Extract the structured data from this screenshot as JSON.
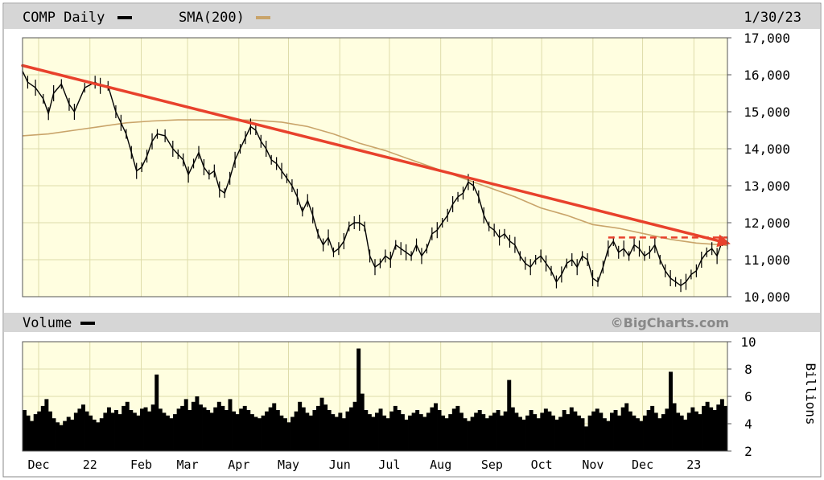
{
  "header": {
    "symbol_label": "COMP Daily",
    "sma_label": "SMA(200)",
    "date": "1/30/23"
  },
  "volume_header": {
    "label": "Volume",
    "credit": "©BigCharts.com"
  },
  "colors": {
    "background": "#fffee0",
    "grid": "#dedcaa",
    "header_bar": "#d6d6d6",
    "price": "#000000",
    "sma": "#c9a46a",
    "trendline": "#e8412c"
  },
  "chart_data": [
    {
      "type": "line",
      "title": "COMP Daily",
      "ylim": [
        10000,
        17000
      ],
      "y_ticks": [
        "17,000",
        "16,000",
        "15,000",
        "14,000",
        "13,000",
        "12,000",
        "11,000",
        "10,000"
      ],
      "y_tick_values": [
        17000,
        16000,
        15000,
        14000,
        13000,
        12000,
        11000,
        10000
      ],
      "x_tick_labels": [
        "Dec",
        "22",
        "Feb",
        "Mar",
        "Apr",
        "May",
        "Jun",
        "Jul",
        "Aug",
        "Sep",
        "Oct",
        "Nov",
        "Dec",
        "23"
      ],
      "x_tick_days": [
        0,
        31,
        62,
        90,
        121,
        151,
        182,
        212,
        243,
        274,
        304,
        335,
        365,
        396
      ],
      "xlim_days": [
        0,
        426
      ],
      "series": [
        {
          "name": "COMP Daily",
          "color": "#000000",
          "points": [
            [
              0,
              16100
            ],
            [
              2,
              15800
            ],
            [
              5,
              15650
            ],
            [
              8,
              15350
            ],
            [
              10,
              14950
            ],
            [
              12,
              15500
            ],
            [
              15,
              15750
            ],
            [
              18,
              15200
            ],
            [
              20,
              15000
            ],
            [
              24,
              15650
            ],
            [
              28,
              15800
            ],
            [
              30,
              15700
            ],
            [
              33,
              15700
            ],
            [
              36,
              15000
            ],
            [
              38,
              14700
            ],
            [
              40,
              14400
            ],
            [
              42,
              13900
            ],
            [
              44,
              13400
            ],
            [
              46,
              13500
            ],
            [
              48,
              13800
            ],
            [
              50,
              14200
            ],
            [
              52,
              14400
            ],
            [
              55,
              14350
            ],
            [
              58,
              14000
            ],
            [
              60,
              13850
            ],
            [
              62,
              13700
            ],
            [
              64,
              13300
            ],
            [
              66,
              13600
            ],
            [
              68,
              13900
            ],
            [
              70,
              13500
            ],
            [
              72,
              13300
            ],
            [
              74,
              13400
            ],
            [
              76,
              12900
            ],
            [
              78,
              12800
            ],
            [
              80,
              13200
            ],
            [
              82,
              13700
            ],
            [
              84,
              14000
            ],
            [
              86,
              14300
            ],
            [
              88,
              14600
            ],
            [
              90,
              14500
            ],
            [
              92,
              14200
            ],
            [
              94,
              14000
            ],
            [
              96,
              13700
            ],
            [
              98,
              13600
            ],
            [
              100,
              13400
            ],
            [
              102,
              13200
            ],
            [
              104,
              13000
            ],
            [
              106,
              12700
            ],
            [
              108,
              12300
            ],
            [
              110,
              12600
            ],
            [
              112,
              12200
            ],
            [
              114,
              11700
            ],
            [
              116,
              11400
            ],
            [
              118,
              11600
            ],
            [
              120,
              11200
            ],
            [
              122,
              11300
            ],
            [
              124,
              11500
            ],
            [
              126,
              11900
            ],
            [
              128,
              12000
            ],
            [
              130,
              12000
            ],
            [
              132,
              11900
            ],
            [
              134,
              11100
            ],
            [
              136,
              10800
            ],
            [
              138,
              10900
            ],
            [
              140,
              11100
            ],
            [
              142,
              11000
            ],
            [
              144,
              11400
            ],
            [
              146,
              11300
            ],
            [
              148,
              11200
            ],
            [
              150,
              11100
            ],
            [
              152,
              11400
            ],
            [
              154,
              11100
            ],
            [
              156,
              11300
            ],
            [
              158,
              11700
            ],
            [
              160,
              11800
            ],
            [
              162,
              12000
            ],
            [
              164,
              12200
            ],
            [
              166,
              12500
            ],
            [
              168,
              12700
            ],
            [
              170,
              12800
            ],
            [
              172,
              13100
            ],
            [
              174,
              13000
            ],
            [
              176,
              12700
            ],
            [
              178,
              12200
            ],
            [
              180,
              11900
            ],
            [
              182,
              11800
            ],
            [
              184,
              11600
            ],
            [
              186,
              11700
            ],
            [
              188,
              11500
            ],
            [
              190,
              11400
            ],
            [
              192,
              11100
            ],
            [
              194,
              10900
            ],
            [
              196,
              10800
            ],
            [
              198,
              11000
            ],
            [
              200,
              11100
            ],
            [
              202,
              10900
            ],
            [
              204,
              10700
            ],
            [
              206,
              10400
            ],
            [
              208,
              10600
            ],
            [
              210,
              10900
            ],
            [
              212,
              11000
            ],
            [
              214,
              10800
            ],
            [
              216,
              11100
            ],
            [
              218,
              11000
            ],
            [
              220,
              10500
            ],
            [
              222,
              10400
            ],
            [
              224,
              10800
            ],
            [
              226,
              11300
            ],
            [
              228,
              11500
            ],
            [
              230,
              11200
            ],
            [
              232,
              11300
            ],
            [
              234,
              11100
            ],
            [
              236,
              11400
            ],
            [
              238,
              11300
            ],
            [
              240,
              11100
            ],
            [
              242,
              11200
            ],
            [
              244,
              11400
            ],
            [
              246,
              11000
            ],
            [
              248,
              10700
            ],
            [
              250,
              10500
            ],
            [
              252,
              10400
            ],
            [
              254,
              10300
            ],
            [
              256,
              10400
            ],
            [
              258,
              10600
            ],
            [
              260,
              10700
            ],
            [
              262,
              11000
            ],
            [
              264,
              11200
            ],
            [
              266,
              11300
            ],
            [
              268,
              11100
            ],
            [
              270,
              11500
            ],
            [
              272,
              11450
            ]
          ]
        },
        {
          "name": "SMA(200)",
          "color": "#c9a46a",
          "points": [
            [
              0,
              14350
            ],
            [
              10,
              14400
            ],
            [
              20,
              14500
            ],
            [
              30,
              14600
            ],
            [
              40,
              14700
            ],
            [
              50,
              14750
            ],
            [
              60,
              14780
            ],
            [
              70,
              14780
            ],
            [
              80,
              14780
            ],
            [
              90,
              14770
            ],
            [
              100,
              14720
            ],
            [
              110,
              14600
            ],
            [
              120,
              14400
            ],
            [
              130,
              14150
            ],
            [
              140,
              13950
            ],
            [
              150,
              13700
            ],
            [
              160,
              13450
            ],
            [
              170,
              13200
            ],
            [
              180,
              12950
            ],
            [
              190,
              12700
            ],
            [
              200,
              12400
            ],
            [
              210,
              12200
            ],
            [
              220,
              11950
            ],
            [
              230,
              11850
            ],
            [
              240,
              11700
            ],
            [
              250,
              11550
            ],
            [
              260,
              11450
            ],
            [
              270,
              11400
            ],
            [
              272,
              11380
            ]
          ]
        }
      ],
      "annotations": {
        "trendline": {
          "start": [
            0,
            16250
          ],
          "end": [
            272,
            11450
          ],
          "color": "#e8412c"
        },
        "resistance": {
          "start": [
            226,
            11600
          ],
          "end": [
            272,
            11600
          ],
          "color": "#e8412c",
          "style": "dashed"
        }
      }
    },
    {
      "type": "bar",
      "title": "Volume",
      "ylabel": "Billions",
      "ylim": [
        2,
        10
      ],
      "y_ticks": [
        "10",
        "8",
        "6",
        "4",
        "2"
      ],
      "y_tick_values": [
        10,
        8,
        6,
        4,
        2
      ],
      "xlim_days": [
        0,
        426
      ],
      "values": [
        5.0,
        4.6,
        4.2,
        4.7,
        4.9,
        5.3,
        5.8,
        4.9,
        4.4,
        4.1,
        3.9,
        4.2,
        4.5,
        4.3,
        4.8,
        5.1,
        5.4,
        4.9,
        4.6,
        4.3,
        4.1,
        4.4,
        4.8,
        5.2,
        4.8,
        5.0,
        4.7,
        5.3,
        5.6,
        5.0,
        4.8,
        4.6,
        5.1,
        5.2,
        4.9,
        5.4,
        7.6,
        5.1,
        4.8,
        4.6,
        4.4,
        4.7,
        5.1,
        5.3,
        5.8,
        5.0,
        5.6,
        6.0,
        5.4,
        5.2,
        5.0,
        4.8,
        5.2,
        5.6,
        5.3,
        5.0,
        5.8,
        4.9,
        4.7,
        5.1,
        5.3,
        5.0,
        4.7,
        4.5,
        4.4,
        4.6,
        4.9,
        5.2,
        5.5,
        5.0,
        4.6,
        4.4,
        4.1,
        4.5,
        4.9,
        5.6,
        5.2,
        4.8,
        4.6,
        5.0,
        5.3,
        5.9,
        5.4,
        5.0,
        4.7,
        4.5,
        4.8,
        4.4,
        4.9,
        5.2,
        5.6,
        9.5,
        6.2,
        5.0,
        4.7,
        4.5,
        4.8,
        5.1,
        4.6,
        4.4,
        4.9,
        5.3,
        5.0,
        4.7,
        4.3,
        4.6,
        4.8,
        5.0,
        4.7,
        4.5,
        4.8,
        5.2,
        5.5,
        5.0,
        4.6,
        4.4,
        4.7,
        5.1,
        5.3,
        4.8,
        4.4,
        4.2,
        4.5,
        4.8,
        5.0,
        4.7,
        4.4,
        4.6,
        4.8,
        5.0,
        4.6,
        4.9,
        7.2,
        5.2,
        4.8,
        4.5,
        4.3,
        4.6,
        5.0,
        4.7,
        4.4,
        4.8,
        5.1,
        4.9,
        4.6,
        4.3,
        4.5,
        5.0,
        4.7,
        5.2,
        4.9,
        4.6,
        4.4,
        3.8,
        4.6,
        4.9,
        5.1,
        4.8,
        4.4,
        4.2,
        4.8,
        5.0,
        4.6,
        5.2,
        5.5,
        4.9,
        4.6,
        4.4,
        4.2,
        4.6,
        5.0,
        5.3,
        4.8,
        4.4,
        4.7,
        5.1,
        7.8,
        5.5,
        4.8,
        4.6,
        4.3,
        4.8,
        5.2,
        4.9,
        4.7,
        5.3,
        5.6,
        5.2,
        5.0,
        5.4,
        5.8,
        5.3
      ]
    }
  ]
}
